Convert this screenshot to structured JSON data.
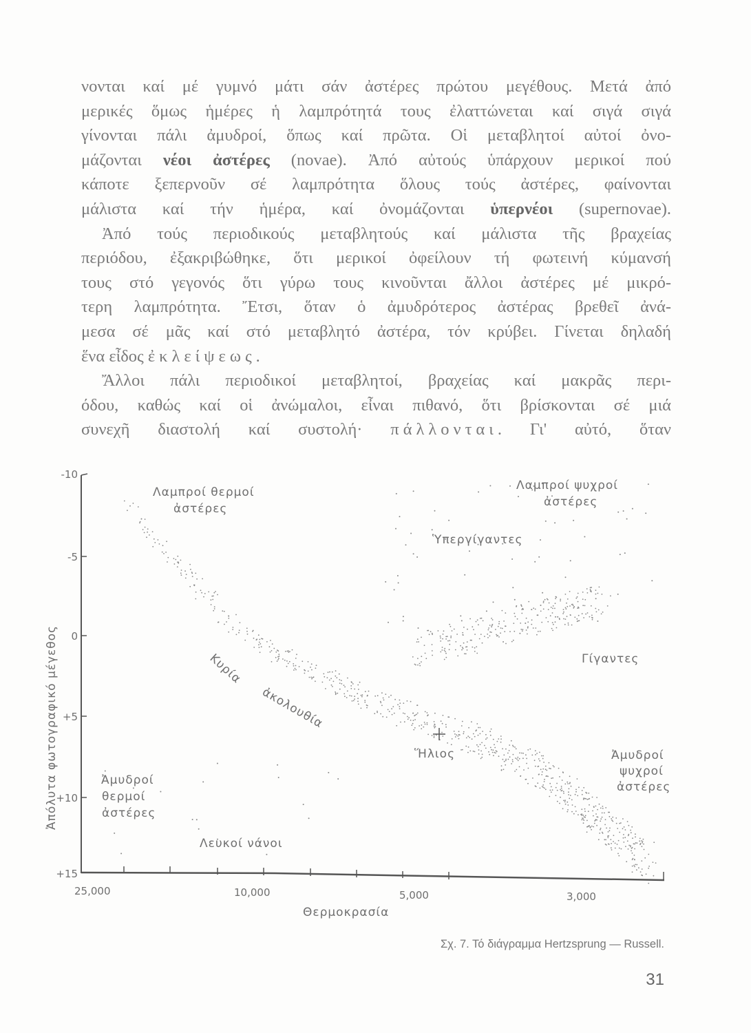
{
  "body_text": {
    "lines": [
      {
        "segs": [
          {
            "t": "νονται καί μέ γυμνό μάτι σάν ἀστέρες πρώτου μεγέθους. Μετά ἀπό"
          }
        ]
      },
      {
        "segs": [
          {
            "t": "μερικές ὅμως ἡμέρες ἡ λαμπρότητά τους ἐλαττώνεται καί σιγά σιγά"
          }
        ]
      },
      {
        "segs": [
          {
            "t": "γίνονται πάλι ἀμυδροί, ὅπως καί πρῶτα. Οἱ μεταβλητοί αὐτοί ὀνο-"
          }
        ]
      },
      {
        "segs": [
          {
            "t": "μάζονται "
          },
          {
            "t": "νέοι ἀστέρες",
            "s": "b"
          },
          {
            "t": " (novae). Ἀπό αὐτούς ὑπάρχουν μερικοί πού"
          }
        ]
      },
      {
        "segs": [
          {
            "t": "κάποτε ξεπερνοῦν σέ λαμπρότητα ὅλους τούς ἀστέρες, φαίνονται"
          }
        ]
      },
      {
        "segs": [
          {
            "t": "μάλιστα καί τήν ἡμέρα, καί ὀνομάζονται "
          },
          {
            "t": "ὑπερνέοι",
            "s": "b"
          },
          {
            "t": " (supernovae)."
          }
        ]
      },
      {
        "indent": true,
        "segs": [
          {
            "t": "Ἀπό τούς περιοδικούς μεταβλητούς καί μάλιστα τῆς βραχείας"
          }
        ]
      },
      {
        "segs": [
          {
            "t": "περιόδου, ἐξακριβώθηκε, ὅτι μερικοί ὀφείλουν τή φωτεινή κύμανσή"
          }
        ]
      },
      {
        "segs": [
          {
            "t": "τους στό γεγονός ὅτι γύρω τους κινοῦνται ἄλλοι ἀστέρες μέ μικρό-"
          }
        ]
      },
      {
        "segs": [
          {
            "t": "τερη λαμπρότητα. Ἔτσι, ὅταν ὁ ἀμυδρότερος ἀστέρας βρεθεῖ ἀνά-"
          }
        ]
      },
      {
        "segs": [
          {
            "t": "μεσα σέ μᾶς καί στό μεταβλητό ἀστέρα, τόν κρύβει. Γίνεται δηλαδή"
          }
        ]
      },
      {
        "last": true,
        "segs": [
          {
            "t": "ἕνα εἶδος "
          },
          {
            "t": "ἐκλείψεως.",
            "s": "sp"
          }
        ]
      },
      {
        "indent": true,
        "segs": [
          {
            "t": "Ἄλλοι πάλι περιοδικοί μεταβλητοί, βραχείας καί μακρᾶς περι-"
          }
        ]
      },
      {
        "segs": [
          {
            "t": "όδου, καθώς καί οἱ ἀνώμαλοι, εἶναι πιθανό, ὅτι βρίσκονται σέ μιά"
          }
        ]
      },
      {
        "segs": [
          {
            "t": "συνεχῆ διαστολή καί συστολή· "
          },
          {
            "t": "πάλλονται",
            "s": "sp"
          },
          {
            "t": ". Γι' αὐτό, ὅταν"
          }
        ]
      }
    ]
  },
  "figure": {
    "type": "Hertzsprung-Russell diagram",
    "y_axis": {
      "label": "Ἀπόλυτα φωτογραφικό μέγεθος",
      "ticks": [
        "-10",
        "-5",
        "0",
        "+5",
        "+10",
        "+15"
      ],
      "inverted": true
    },
    "x_axis": {
      "label": "Θερμοκρασία",
      "ticks": [
        "25,000",
        "10,000",
        "5,000",
        "3,000"
      ]
    },
    "regions": {
      "bright_hot": [
        "Λαμπροί θερμοί",
        "ἀστέρες"
      ],
      "bright_cool": [
        "Λαμπροί ψυχροί",
        "ἀστέρες"
      ],
      "supergiants": "Ὑπεργίγαντες",
      "giants": "Γίγαντες",
      "main_sequence": [
        "Κυρία",
        "ἀκολουθία"
      ],
      "sun": "Ἥλιος",
      "faint_cool": [
        "Ἀμυδροί",
        "ψυχροί",
        "ἀστέρες"
      ],
      "faint_hot": [
        "Ἀμυδροί",
        "θερμοί",
        "ἀστέρες"
      ],
      "white_dwarfs": "Λευκοί νάνοι"
    },
    "caption": "Σχ. 7. Τό διάγραμμα Hertzsprung — Russell."
  },
  "page_number": "31",
  "colors": {
    "ink": "#7a7a7a",
    "paper": "#fdfdfc"
  }
}
